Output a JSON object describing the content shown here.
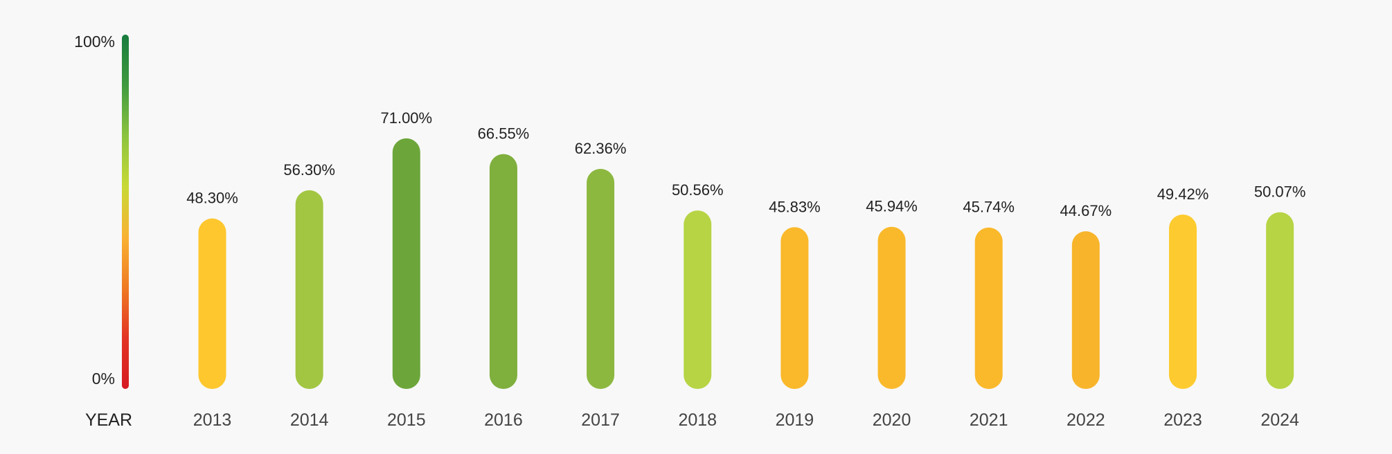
{
  "chart_data": {
    "type": "bar",
    "categories": [
      "2013",
      "2014",
      "2015",
      "2016",
      "2017",
      "2018",
      "2019",
      "2020",
      "2021",
      "2022",
      "2023",
      "2024"
    ],
    "values": [
      48.3,
      56.3,
      71.0,
      66.55,
      62.36,
      50.56,
      45.83,
      45.94,
      45.74,
      44.67,
      49.42,
      50.07
    ],
    "value_labels": [
      "48.30%",
      "56.30%",
      "71.00%",
      "66.55%",
      "62.36%",
      "50.56%",
      "45.83%",
      "45.94%",
      "45.74%",
      "44.67%",
      "49.42%",
      "50.07%"
    ],
    "ylim": [
      0,
      100
    ],
    "scale": {
      "top_label": "100%",
      "bottom_label": "0%"
    },
    "x_axis_label": "YEAR",
    "bar_colors": [
      "#fec72e",
      "#a2c642",
      "#6ca63b",
      "#7faf3d",
      "#8cb83f",
      "#b6d444",
      "#fab92b",
      "#fab92b",
      "#fab92b",
      "#f8b52b",
      "#fdcb2f",
      "#b6d444"
    ],
    "scale_gradient": [
      "#187c3e",
      "#3f9a3f",
      "#8cc43f",
      "#c8d936",
      "#f9b233",
      "#ef7b23",
      "#e23424",
      "#d61a22"
    ]
  }
}
